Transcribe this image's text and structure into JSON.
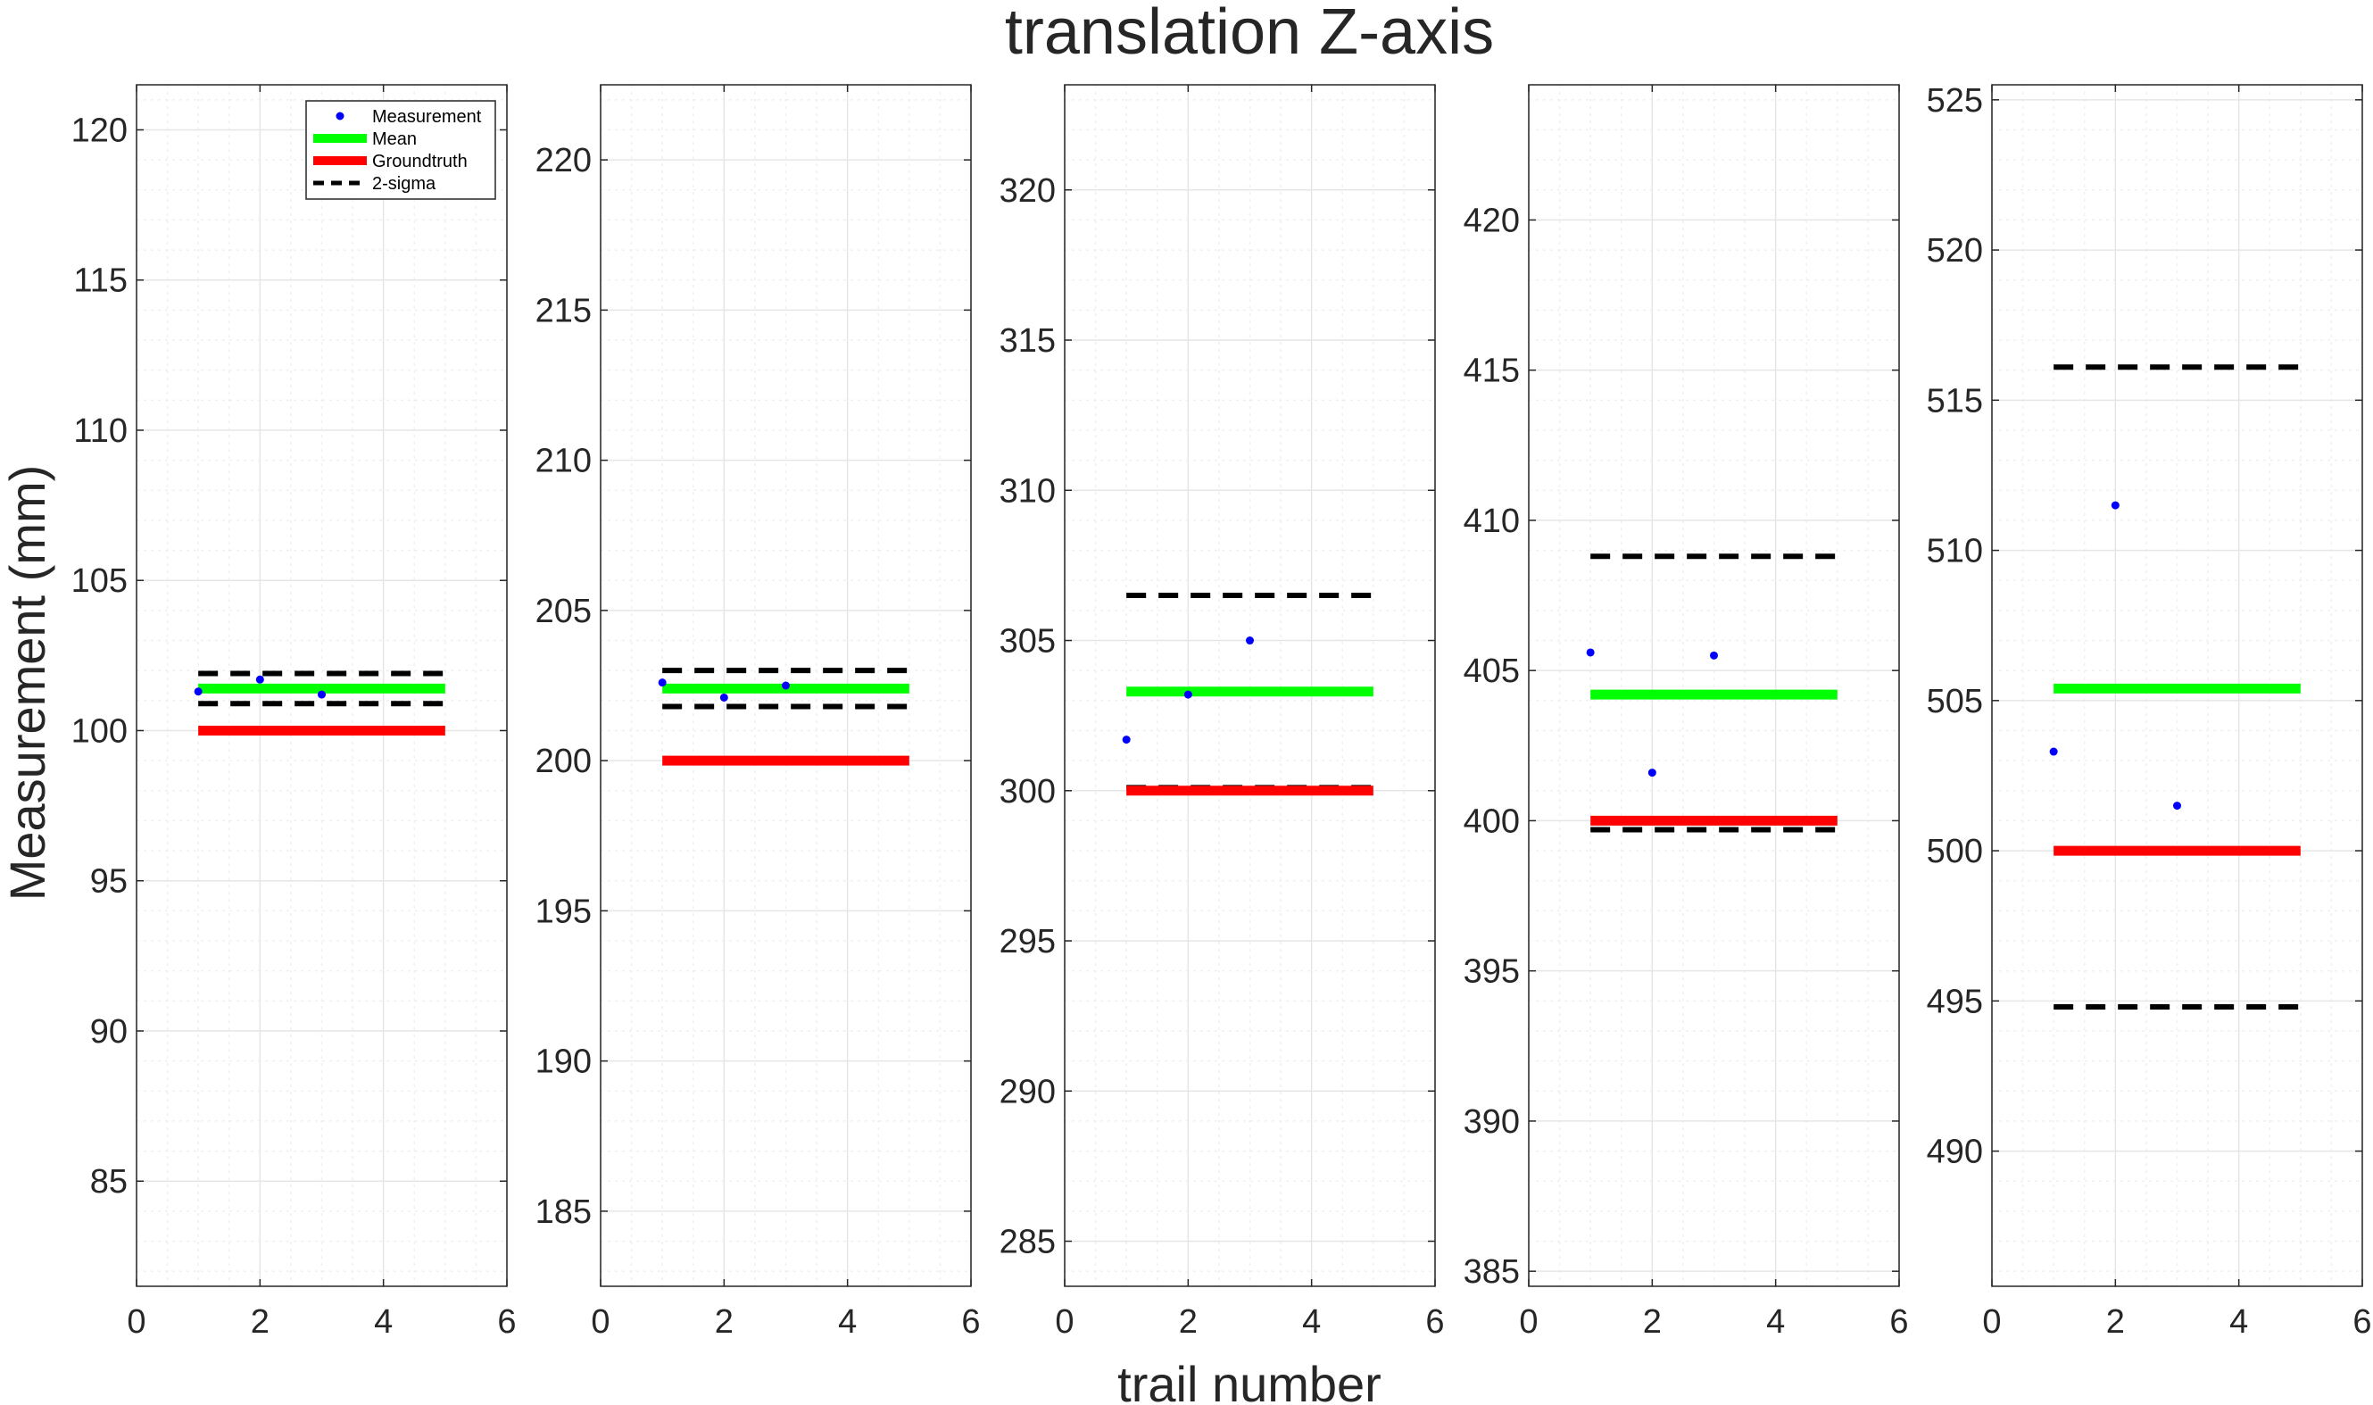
{
  "title": "translation Z-axis",
  "xlabel": "trail number",
  "ylabel": "Measurement (mm)",
  "colors": {
    "measurement": "#0000ff",
    "mean": "#00ff00",
    "groundtruth": "#ff0000",
    "sigma": "#000000",
    "grid": "#e6e6e6",
    "axis": "#262626"
  },
  "legend": {
    "placement": "top-right of first subplot",
    "entries": [
      "Measurement",
      "Mean",
      "Groundtruth",
      "2-sigma"
    ]
  },
  "chart_data": [
    {
      "type": "scatter",
      "xlim": [
        0,
        6
      ],
      "ylim": [
        81.5,
        121.5
      ],
      "xticks": [
        0,
        2,
        4,
        6
      ],
      "yticks": [
        85,
        90,
        95,
        100,
        105,
        110,
        115,
        120
      ],
      "grid": true,
      "measurements": {
        "x": [
          1,
          2,
          3
        ],
        "y": [
          101.3,
          101.7,
          101.2
        ]
      },
      "mean": 101.4,
      "groundtruth": 100,
      "sigma_upper": 101.9,
      "sigma_lower": 100.9
    },
    {
      "type": "scatter",
      "xlim": [
        0,
        6
      ],
      "ylim": [
        182.5,
        222.5
      ],
      "xticks": [
        0,
        2,
        4,
        6
      ],
      "yticks": [
        185,
        190,
        195,
        200,
        205,
        210,
        215,
        220
      ],
      "grid": true,
      "measurements": {
        "x": [
          1,
          2,
          3
        ],
        "y": [
          202.6,
          202.1,
          202.5
        ]
      },
      "mean": 202.4,
      "groundtruth": 200,
      "sigma_upper": 203.0,
      "sigma_lower": 201.8
    },
    {
      "type": "scatter",
      "xlim": [
        0,
        6
      ],
      "ylim": [
        283.5,
        323.5
      ],
      "xticks": [
        0,
        2,
        4,
        6
      ],
      "yticks": [
        285,
        290,
        295,
        300,
        305,
        310,
        315,
        320
      ],
      "grid": true,
      "measurements": {
        "x": [
          1,
          2,
          3
        ],
        "y": [
          301.7,
          303.2,
          305.0
        ]
      },
      "mean": 303.3,
      "groundtruth": 300,
      "sigma_upper": 306.5,
      "sigma_lower": 300.1
    },
    {
      "type": "scatter",
      "xlim": [
        0,
        6
      ],
      "ylim": [
        384.5,
        424.5
      ],
      "xticks": [
        0,
        2,
        4,
        6
      ],
      "yticks": [
        385,
        390,
        395,
        400,
        405,
        410,
        415,
        420
      ],
      "grid": true,
      "measurements": {
        "x": [
          1,
          2,
          3
        ],
        "y": [
          405.6,
          401.6,
          405.5
        ]
      },
      "mean": 404.2,
      "groundtruth": 400,
      "sigma_upper": 408.8,
      "sigma_lower": 399.7
    },
    {
      "type": "scatter",
      "xlim": [
        0,
        6
      ],
      "ylim": [
        485.5,
        525.5
      ],
      "xticks": [
        0,
        2,
        4,
        6
      ],
      "yticks": [
        490,
        495,
        500,
        505,
        510,
        515,
        520,
        525
      ],
      "grid": true,
      "measurements": {
        "x": [
          1,
          2,
          3
        ],
        "y": [
          503.3,
          511.5,
          501.5
        ]
      },
      "mean": 505.4,
      "groundtruth": 500,
      "sigma_upper": 516.1,
      "sigma_lower": 494.8
    }
  ]
}
